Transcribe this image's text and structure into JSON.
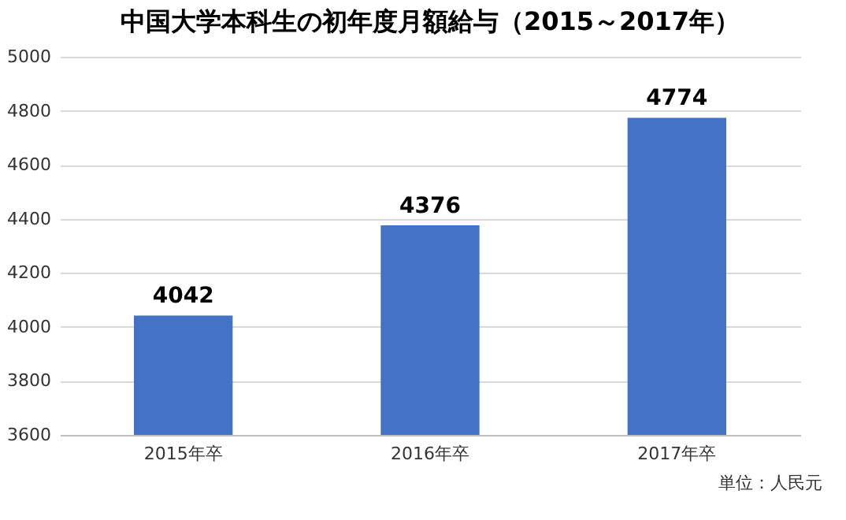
{
  "chart_data": {
    "type": "bar",
    "title": "中国大学本科生の初年度月額給与（2015～2017年）",
    "categories": [
      "2015年卒",
      "2016年卒",
      "2017年卒"
    ],
    "values": [
      4042,
      4376,
      4774
    ],
    "color": "#4472c4",
    "ylim": [
      3600,
      5000
    ],
    "yticks": [
      3600,
      3800,
      4000,
      4200,
      4400,
      4600,
      4800,
      5000
    ],
    "grid": "y",
    "data_labels": true,
    "annotations": [
      "単位：人民元"
    ]
  }
}
